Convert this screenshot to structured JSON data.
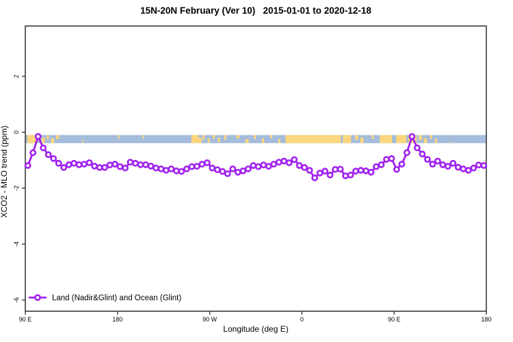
{
  "window": {
    "title": "15N-20N February (Ver 10)   2015-01-01 to 2020-12-18"
  },
  "chart_data": {
    "type": "line",
    "title": "15N-20N February (Ver 10)   2015-01-01 to 2020-12-18",
    "xlabel": "Longitude (deg E)",
    "ylabel": "XCO2 - MLO trend (ppm)",
    "xlim": [
      90,
      540
    ],
    "ylim": [
      -6.4,
      3.8
    ],
    "grid": false,
    "x_ticks": [
      {
        "value": 90,
        "label": "90 E"
      },
      {
        "value": 180,
        "label": "180"
      },
      {
        "value": 270,
        "label": "90 W"
      },
      {
        "value": 360,
        "label": "0"
      },
      {
        "value": 450,
        "label": "90 E"
      },
      {
        "value": 540,
        "label": "180"
      }
    ],
    "y_ticks": [
      {
        "value": 2,
        "label": "2"
      },
      {
        "value": 0,
        "label": "0"
      },
      {
        "value": -2,
        "label": "-2"
      },
      {
        "value": -4,
        "label": "-4"
      },
      {
        "value": -6,
        "label": "-6"
      }
    ],
    "legend": {
      "position": "bottom-left",
      "entries": [
        {
          "label": "Land (Nadir&Glint) and Ocean (Glint)",
          "color": "#A020F0",
          "marker": "open-circle"
        }
      ]
    },
    "series": [
      {
        "name": "Land (Nadir&Glint) and Ocean (Glint)",
        "color": "#A020F0",
        "marker": "open-circle",
        "x": [
          92.5,
          97.5,
          102.5,
          107.5,
          112.5,
          117.5,
          122.5,
          127.5,
          132.5,
          137.5,
          142.5,
          147.5,
          152.5,
          157.5,
          162.5,
          167.5,
          172.5,
          177.5,
          182.5,
          187.5,
          192.5,
          197.5,
          202.5,
          207.5,
          212.5,
          217.5,
          222.5,
          227.5,
          232.5,
          237.5,
          242.5,
          247.5,
          252.5,
          257.5,
          262.5,
          267.5,
          272.5,
          277.5,
          282.5,
          287.5,
          292.5,
          297.5,
          302.5,
          307.5,
          312.5,
          317.5,
          322.5,
          327.5,
          332.5,
          337.5,
          342.5,
          347.5,
          352.5,
          357.5,
          362.5,
          367.5,
          372.5,
          377.5,
          382.5,
          387.5,
          392.5,
          397.5,
          402.5,
          407.5,
          412.5,
          417.5,
          422.5,
          427.5,
          432.5,
          437.5,
          442.5,
          447.5,
          452.5,
          457.5,
          462.5,
          467.5,
          472.5,
          477.5,
          482.5,
          487.5,
          492.5,
          497.5,
          502.5,
          507.5,
          512.5,
          517.5,
          522.5,
          527.5,
          532.5,
          537.5
        ],
        "values": [
          -1.19,
          -0.73,
          -0.15,
          -0.56,
          -0.8,
          -0.94,
          -1.11,
          -1.26,
          -1.16,
          -1.11,
          -1.16,
          -1.14,
          -1.09,
          -1.21,
          -1.26,
          -1.26,
          -1.17,
          -1.14,
          -1.23,
          -1.28,
          -1.07,
          -1.11,
          -1.16,
          -1.16,
          -1.21,
          -1.28,
          -1.31,
          -1.36,
          -1.31,
          -1.38,
          -1.4,
          -1.31,
          -1.23,
          -1.22,
          -1.14,
          -1.09,
          -1.28,
          -1.34,
          -1.4,
          -1.48,
          -1.31,
          -1.43,
          -1.38,
          -1.31,
          -1.19,
          -1.23,
          -1.17,
          -1.22,
          -1.14,
          -1.07,
          -1.03,
          -1.09,
          -0.98,
          -1.19,
          -1.26,
          -1.36,
          -1.63,
          -1.46,
          -1.39,
          -1.53,
          -1.33,
          -1.32,
          -1.56,
          -1.53,
          -1.39,
          -1.36,
          -1.38,
          -1.43,
          -1.23,
          -1.16,
          -0.97,
          -0.94,
          -1.33,
          -1.14,
          -0.73,
          -0.15,
          -0.56,
          -0.78,
          -0.97,
          -1.14,
          -1.03,
          -1.16,
          -1.22,
          -1.11,
          -1.25,
          -1.31,
          -1.36,
          -1.28,
          -1.17,
          -1.19
        ]
      }
    ],
    "band": {
      "description": "land-ocean strip along longitude",
      "y_range": [
        -0.1,
        -0.39
      ],
      "ocean_color": "#A5BCDC",
      "land_color": "#FDD77E",
      "land_segments": [
        [
          92,
          101,
          0,
          1
        ],
        [
          102,
          105,
          0.1,
          0.7
        ],
        [
          106,
          109,
          0.3,
          1
        ],
        [
          111,
          113,
          0,
          0.6
        ],
        [
          115,
          118,
          0.4,
          1
        ],
        [
          120,
          123,
          0,
          0.5
        ],
        [
          145.5,
          146.5,
          0.6,
          1
        ],
        [
          180.5,
          181.8,
          0,
          0.5
        ],
        [
          204.5,
          205.8,
          0,
          0.5
        ],
        [
          252,
          259,
          0,
          1
        ],
        [
          259,
          262,
          0.3,
          1
        ],
        [
          263,
          265,
          0,
          0.6
        ],
        [
          268,
          270,
          0.4,
          1
        ],
        [
          273,
          275,
          0,
          0.5
        ],
        [
          278,
          280,
          0.3,
          0.9
        ],
        [
          284,
          286,
          0,
          0.6
        ],
        [
          296,
          299,
          0,
          0.4
        ],
        [
          305,
          308,
          0.5,
          1
        ],
        [
          313,
          315,
          0,
          0.5
        ],
        [
          321,
          323,
          0.4,
          1
        ],
        [
          329,
          331,
          0,
          0.4
        ],
        [
          337,
          339,
          0.5,
          1
        ],
        [
          344,
          398,
          0,
          1
        ],
        [
          400,
          408,
          0,
          1
        ],
        [
          412,
          415,
          0,
          0.6
        ],
        [
          417,
          420,
          0.3,
          1
        ],
        [
          428,
          430,
          0,
          0.5
        ],
        [
          436,
          448,
          0,
          1
        ],
        [
          452,
          462,
          0,
          1
        ],
        [
          464,
          472,
          0,
          1
        ],
        [
          474,
          477,
          0,
          0.6
        ],
        [
          479,
          482,
          0.4,
          1
        ],
        [
          485,
          487,
          0,
          0.5
        ],
        [
          490,
          492,
          0.4,
          1
        ],
        [
          504.8,
          505.8,
          0.8,
          1
        ]
      ]
    }
  },
  "colors": {
    "series_purple": "#A020F0",
    "ocean_blue": "#A5BCDC",
    "land_yellow": "#FDD77E",
    "axis": "#3A3A3A",
    "background": "#FFFFFF"
  }
}
